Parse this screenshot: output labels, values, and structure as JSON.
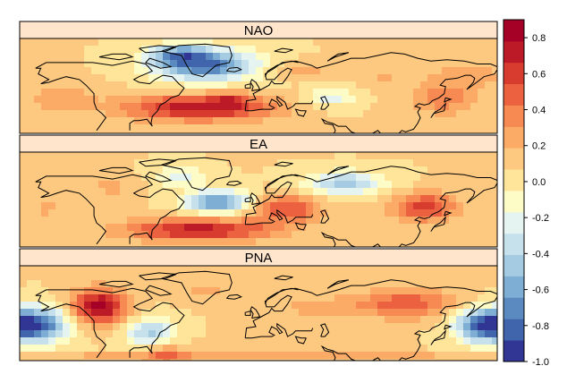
{
  "chart_data": {
    "type": "heatmap",
    "panels": [
      {
        "name": "NAO",
        "blobs": [
          {
            "lon": -40,
            "lat": 68,
            "rlon": 38,
            "rlat": 11,
            "value": -0.85
          },
          {
            "lon": -60,
            "lat": 76,
            "rlon": 22,
            "rlat": 7,
            "value": -0.5
          },
          {
            "lon": -45,
            "lat": 38,
            "rlon": 55,
            "rlat": 9,
            "value": 0.7
          },
          {
            "lon": -20,
            "lat": 44,
            "rlon": 14,
            "rlat": 5,
            "value": 0.25
          },
          {
            "lon": 55,
            "lat": 45,
            "rlon": 18,
            "rlat": 7,
            "value": -0.3
          },
          {
            "lon": 30,
            "lat": 65,
            "rlon": 25,
            "rlat": 6,
            "value": 0.18
          },
          {
            "lon": 140,
            "lat": 45,
            "rlon": 25,
            "rlat": 12,
            "value": 0.32
          },
          {
            "lon": -150,
            "lat": 45,
            "rlon": 25,
            "rlat": 10,
            "value": 0.2
          },
          {
            "lon": 160,
            "lat": 62,
            "rlon": 30,
            "rlat": 8,
            "value": 0.18
          },
          {
            "lon": 95,
            "lat": 60,
            "rlon": 20,
            "rlat": 8,
            "value": 0.12
          }
        ]
      },
      {
        "name": "EA",
        "blobs": [
          {
            "lon": -30,
            "lat": 52,
            "rlon": 25,
            "rlat": 8,
            "value": -0.75
          },
          {
            "lon": -60,
            "lat": 70,
            "rlon": 20,
            "rlat": 7,
            "value": -0.3
          },
          {
            "lon": -45,
            "lat": 32,
            "rlon": 55,
            "rlat": 8,
            "value": 0.65
          },
          {
            "lon": 20,
            "lat": 47,
            "rlon": 25,
            "rlat": 10,
            "value": 0.5
          },
          {
            "lon": 65,
            "lat": 65,
            "rlon": 30,
            "rlat": 8,
            "value": -0.5
          },
          {
            "lon": 125,
            "lat": 48,
            "rlon": 24,
            "rlat": 10,
            "value": 0.55
          },
          {
            "lon": -160,
            "lat": 48,
            "rlon": 12,
            "rlat": 10,
            "value": 0.15
          },
          {
            "lon": -110,
            "lat": 62,
            "rlon": 20,
            "rlat": 8,
            "value": 0.15
          }
        ]
      },
      {
        "name": "PNA",
        "blobs": [
          {
            "lon": -165,
            "lat": 45,
            "rlon": 22,
            "rlat": 12,
            "value": -0.85
          },
          {
            "lon": -120,
            "lat": 58,
            "rlon": 20,
            "rlat": 12,
            "value": 0.8
          },
          {
            "lon": -82,
            "lat": 40,
            "rlon": 18,
            "rlat": 10,
            "value": -0.5
          },
          {
            "lon": -70,
            "lat": 25,
            "rlon": 15,
            "rlat": 8,
            "value": 0.3
          },
          {
            "lon": 110,
            "lat": 60,
            "rlon": 40,
            "rlat": 10,
            "value": 0.45
          },
          {
            "lon": 168,
            "lat": 45,
            "rlon": 20,
            "rlat": 12,
            "value": -0.85
          },
          {
            "lon": 40,
            "lat": 58,
            "rlon": 25,
            "rlat": 8,
            "value": 0.15
          },
          {
            "lon": -40,
            "lat": 70,
            "rlon": 20,
            "rlat": 8,
            "value": 0.15
          },
          {
            "lon": 0,
            "lat": 22,
            "rlon": 180,
            "rlat": 3,
            "value": 0.3
          }
        ]
      }
    ],
    "colorbar": {
      "ticks": [
        "0.8",
        "0.6",
        "0.4",
        "0.2",
        "0.0",
        "-0.2",
        "-0.4",
        "-0.6",
        "-0.8",
        "-1.0"
      ],
      "tick_values": [
        0.8,
        0.6,
        0.4,
        0.2,
        0.0,
        -0.2,
        -0.4,
        -0.6,
        -0.8,
        -1.0
      ],
      "range": [
        -1.0,
        0.9
      ],
      "colors": [
        "#313695",
        "#4065ac",
        "#5b8ac0",
        "#7eaed3",
        "#a5cbe2",
        "#c7e1ec",
        "#e6f4f1",
        "#fdfbc6",
        "#fee59a",
        "#fdc980",
        "#fcab66",
        "#f78952",
        "#ec6240",
        "#d83c2f",
        "#bc1a27",
        "#a50026"
      ]
    },
    "projection": "lon-lat",
    "lon_range": [
      -180,
      180
    ],
    "lat_range": [
      20,
      87
    ],
    "strip_color": "#ffe5cc"
  }
}
